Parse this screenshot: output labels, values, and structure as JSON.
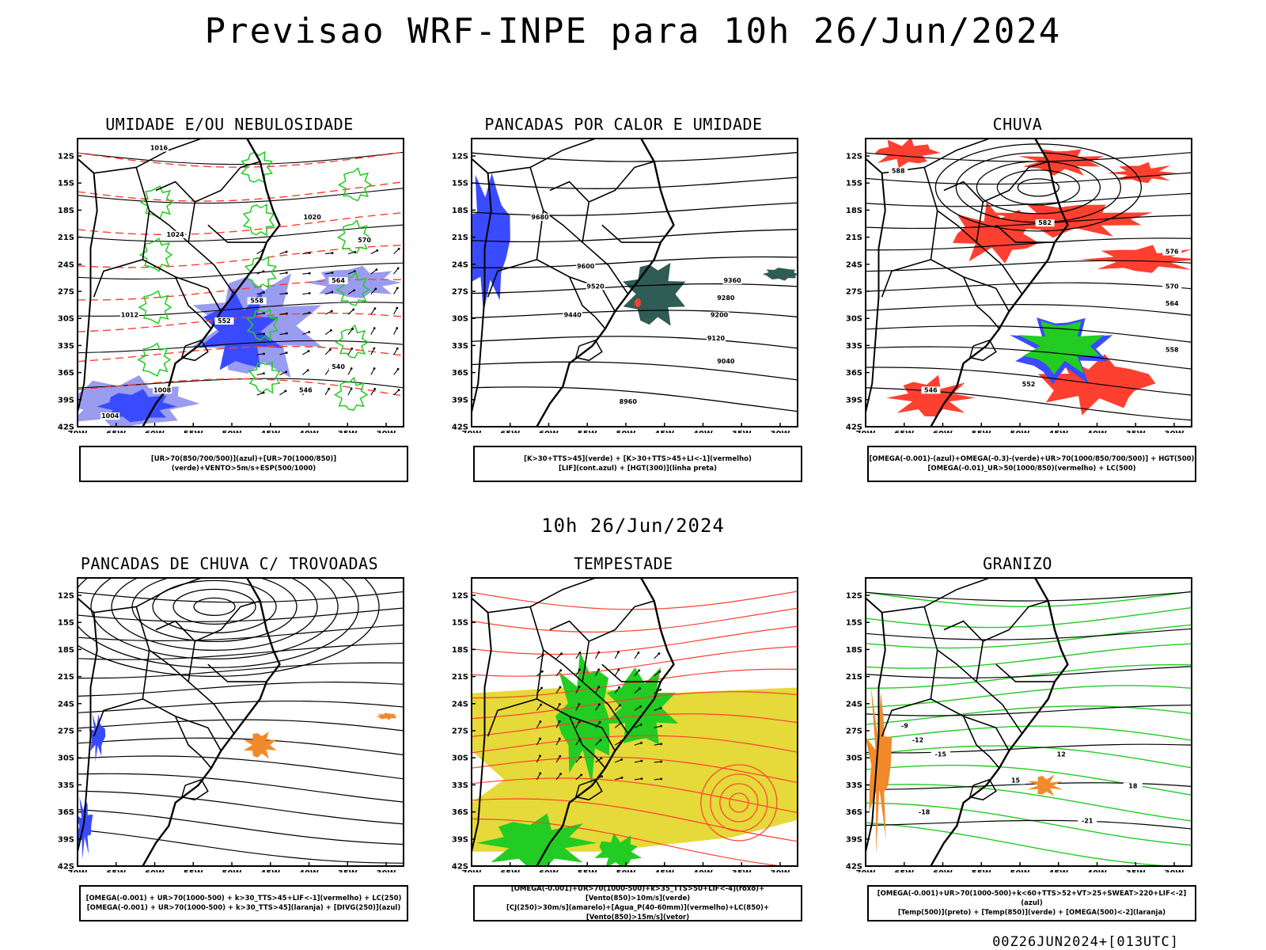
{
  "header": {
    "title": "Previsao WRF-INPE  para 10h 26/Jun/2024"
  },
  "middle_date": "10h 26/Jun/2024",
  "footer_code": "00Z26JUN2024+[013UTC]",
  "axes": {
    "lat_labels": [
      "12S",
      "15S",
      "18S",
      "21S",
      "24S",
      "27S",
      "30S",
      "33S",
      "36S",
      "39S",
      "42S"
    ],
    "lon_labels": [
      "70W",
      "65W",
      "60W",
      "55W",
      "50W",
      "45W",
      "40W",
      "35W",
      "30W"
    ]
  },
  "panels": [
    {
      "id": "umidade",
      "title": "UMIDADE E/OU NEBULOSIDADE",
      "legend": [
        "[UR>70(850/700/500)](azul)+[UR>70(1000/850)](verde)+VENTO>5m/s+ESP(500/1000)"
      ],
      "contour_labels": [
        "1016",
        "1020",
        "1024",
        "1012",
        "1008",
        "1004",
        "570",
        "564",
        "558",
        "552",
        "546",
        "540"
      ]
    },
    {
      "id": "calor",
      "title": "PANCADAS POR CALOR E UMIDADE",
      "legend": [
        "[K>30+TTS>45](verde) + [K>30+TTS>45+LI<-1](vermelho)",
        "[LIF](cont.azul) + [HGT(300)](linha preta)"
      ],
      "contour_labels": [
        "9680",
        "9600",
        "9520",
        "9440",
        "9360",
        "9280",
        "9200",
        "9120",
        "9040",
        "8960"
      ]
    },
    {
      "id": "chuva",
      "title": "CHUVA",
      "legend": [
        "[OMEGA(-0.001)-(azul)+OMEGA(-0.3)-(verde)+UR>70(1000/850/700/500)] + HGT(500)",
        "[OMEGA(-0.01)_UR>50(1000/850)(vermelho) + LC(500)"
      ],
      "contour_labels": [
        "588",
        "582",
        "576",
        "570",
        "564",
        "558",
        "552",
        "546"
      ]
    },
    {
      "id": "trovoadas",
      "title": "PANCADAS DE CHUVA C/ TROVOADAS",
      "legend": [
        "[OMEGA(-0.001) + UR>70(1000-500) + k>30_TTS>45+LIF<-1](vermelho) + LC(250)",
        "[OMEGA(-0.001) + UR>70(1000-500) + k>30_TTS>45](laranja) + [DIVG(250)](azul)"
      ],
      "contour_labels": []
    },
    {
      "id": "tempestade",
      "title": "TEMPESTADE",
      "legend": [
        "[OMEGA(-0.001)+UR>70(1000-500)+k>35_TTS>50+LIF<-4](roxo)+[Vento(850)>10m/s](verde)",
        "[CJ(250)>30m/s](amarelo)+[Agua_P(40-60mm)](vermelho)+LC(850)+[Vento(850)>15m/s](vetor)"
      ],
      "contour_labels": []
    },
    {
      "id": "granizo",
      "title": "GRANIZO",
      "legend": [
        "[OMEGA(-0.001)+UR>70(1000-500)+k<60+TTS>52+VT>25+SWEAT>220+LIF<-2](azul)",
        "[Temp(500)](preto) + [Temp(850)](verde) + [OMEGA(500)<-2](laranja)"
      ],
      "contour_labels": [
        "-9",
        "-12",
        "-15",
        "-18",
        "-21",
        "12",
        "15",
        "18"
      ]
    }
  ],
  "colors": {
    "blue": "#3a4bff",
    "lightblue": "#9a9cf0",
    "green": "#22cc22",
    "red": "#ff4030",
    "yellow": "#e6d93a",
    "orange": "#f08a2a",
    "teal": "#2f5c55",
    "black": "#000000"
  }
}
